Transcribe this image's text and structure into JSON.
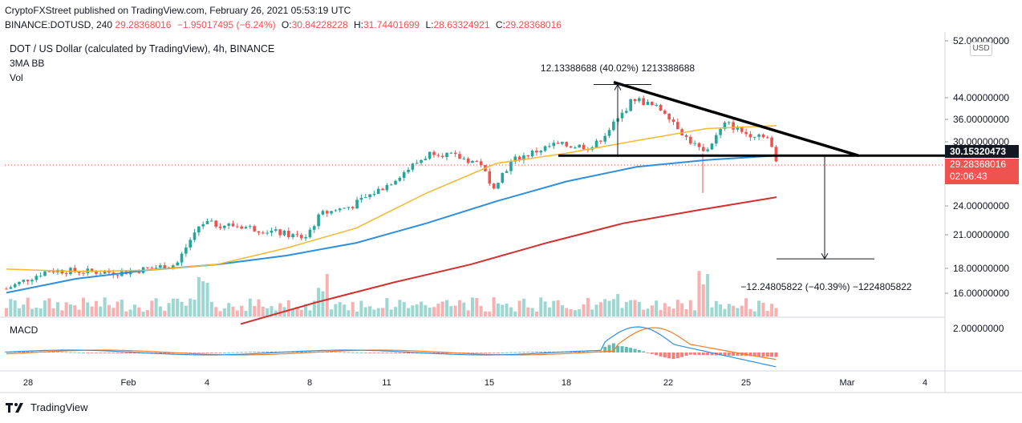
{
  "header": {
    "publisher_line": "CryptoFXStreet published on TradingView.com, February 26, 2021 05:53:19 UTC",
    "symbol": "BINANCE:DOTUSD, 240",
    "last": "29.28368016",
    "change": "−1.95017495 (−6.24%)",
    "o_label": "O:",
    "o_value": "30.84228228",
    "h_label": "H:",
    "h_value": "31.74401699",
    "l_label": "L:",
    "l_value": "28.63324921",
    "c_label": "C:",
    "c_value": "29.28368016"
  },
  "legend": {
    "title": "DOT / US Dollar (calculated by TradingView), 4h, BINANCE",
    "indicator": "3MA BB",
    "volume": "Vol",
    "macd": "MACD"
  },
  "axis": {
    "currency_button": "USD",
    "price_badge": "30.15320473",
    "last_price": "29.28368016",
    "countdown": "02:06:43"
  },
  "annotations": {
    "upper_measure": "12.13388688 (40.02%) 1213388688",
    "lower_measure": "−12.24805822 (−40.39%) −1224805822"
  },
  "branding": {
    "logo_text": "TradingView"
  },
  "colors": {
    "up": "#26a69a",
    "down": "#ef5350",
    "ma_fast": "#f5b82e",
    "ma_mid": "#2f8fdd",
    "ma_slow": "#d32f2f",
    "macd": "#2f8fdd",
    "signal": "#f57c28",
    "pattern_lines": "#000000"
  },
  "chart_data": {
    "type": "candlestick",
    "title": "DOT / US Dollar (calculated by TradingView), 4h, BINANCE",
    "price_axis_ticks": [
      52.0,
      44.0,
      36.0,
      30.0,
      24.0,
      21.0,
      18.0,
      16.0
    ],
    "price_axis_labels": [
      "52.00000000",
      "44.00000000",
      "36.00000000",
      "30.00000000",
      "24.00000000",
      "21.00000000",
      "18.00000000",
      "16.00000000"
    ],
    "x_axis_labels": [
      "28",
      "Feb",
      "4",
      "8",
      "11",
      "15",
      "18",
      "22",
      "25",
      "Mar",
      "4"
    ],
    "macd_axis_label": "2.00000000",
    "price_range": [
      13.5,
      55.0
    ],
    "log_scale": true,
    "candles_keyframes": [
      {
        "x": "28",
        "close": 15.5
      },
      {
        "x": "Feb",
        "close": 17.0
      },
      {
        "x": "4",
        "close": 18.5
      },
      {
        "x": "4.5",
        "close": 21.5
      },
      {
        "x": "8",
        "close": 20.0
      },
      {
        "x": "8.5",
        "close": 22.5
      },
      {
        "x": "11",
        "close": 26.0
      },
      {
        "x": "12.5",
        "close": 31.0
      },
      {
        "x": "15",
        "close": 28.0
      },
      {
        "x": "18",
        "close": 32.0
      },
      {
        "x": "19.5",
        "close": 36.5
      },
      {
        "x": "20",
        "close": 40.0
      },
      {
        "x": "22",
        "close": 36.0
      },
      {
        "x": "22.5",
        "close": 31.0
      },
      {
        "x": "24",
        "close": 35.5
      },
      {
        "x": "25",
        "close": 33.0
      },
      {
        "x": "26",
        "close": 29.28
      }
    ],
    "moving_averages": [
      {
        "points": [
          17.1,
          16.9,
          17.0,
          17.5,
          19.0,
          21.0,
          25.0,
          29.0,
          30.5,
          32.5,
          34.5,
          35.0
        ]
      },
      {
        "points": [
          15.2,
          16.3,
          17.0,
          17.5,
          18.3,
          19.5,
          21.5,
          24.0,
          26.5,
          28.5,
          29.5,
          30.15
        ]
      },
      {
        "points": [
          13.0,
          14.5,
          16.0,
          17.5,
          19.5,
          21.5,
          23.0,
          24.5
        ]
      }
    ],
    "key_levels": {
      "support": 30.15320473,
      "descending_trendline_start": 43.5,
      "measured_move_top": 43.0,
      "measured_move_target": 18.0
    },
    "volume": "histogram, larger bars near Feb 4, Feb 8, Feb 20 and Feb 23",
    "macd": "MACD above signal Feb 18-21, crossing below into negative territory Feb 22-26"
  }
}
